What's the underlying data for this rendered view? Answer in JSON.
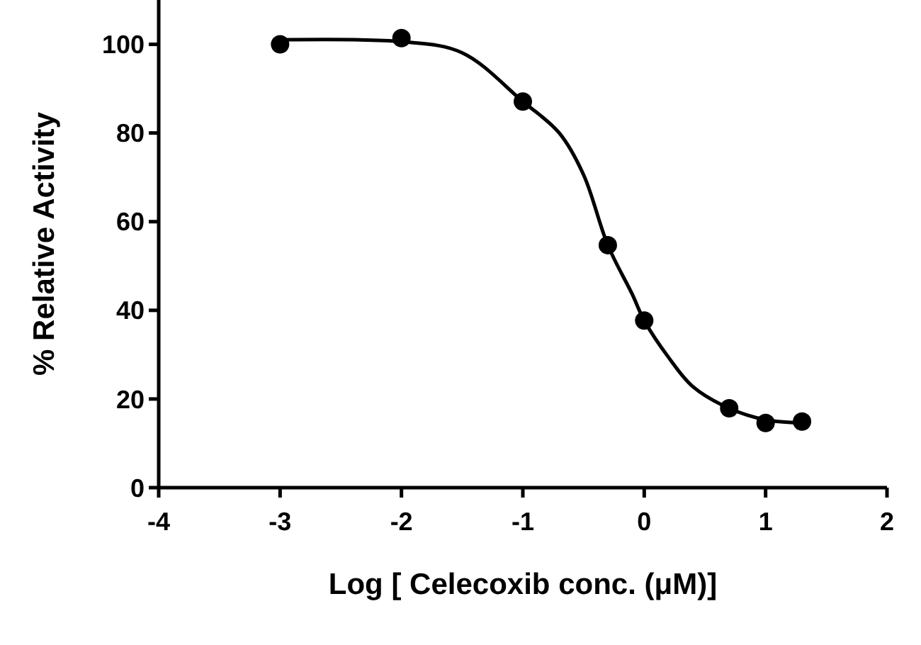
{
  "chart_data": {
    "type": "scatter",
    "xlabel": "Log [ Celecoxib conc.  (μM)]",
    "ylabel": "% Relative Activity",
    "xlim": [
      -4,
      2
    ],
    "xticks": [
      -4,
      -3,
      -2,
      -1,
      0,
      1,
      2
    ],
    "ylim": [
      0,
      110
    ],
    "yticks": [
      0,
      20,
      40,
      60,
      80,
      100
    ],
    "grid": false,
    "series": [
      {
        "color": "#000000",
        "marker": "circle",
        "x": [
          -3,
          -2,
          -1,
          -0.3,
          0,
          0.7,
          1,
          1.3
        ],
        "values": [
          100,
          101.4,
          87.1,
          54.7,
          37.7,
          17.9,
          14.6,
          14.9
        ]
      },
      {
        "type": "line",
        "color": "#000000",
        "marker": "none",
        "line_style": "solid",
        "x": [
          -3,
          -2,
          -1.5,
          -1,
          -0.7,
          -0.5,
          -0.3,
          -0.1,
          0,
          0.2,
          0.4,
          0.7,
          1,
          1.3
        ],
        "values": [
          101,
          100.6,
          98.1,
          87.1,
          80,
          70.6,
          54.7,
          43.7,
          37.7,
          29.4,
          22.8,
          17.9,
          15.3,
          14.6
        ]
      }
    ]
  }
}
